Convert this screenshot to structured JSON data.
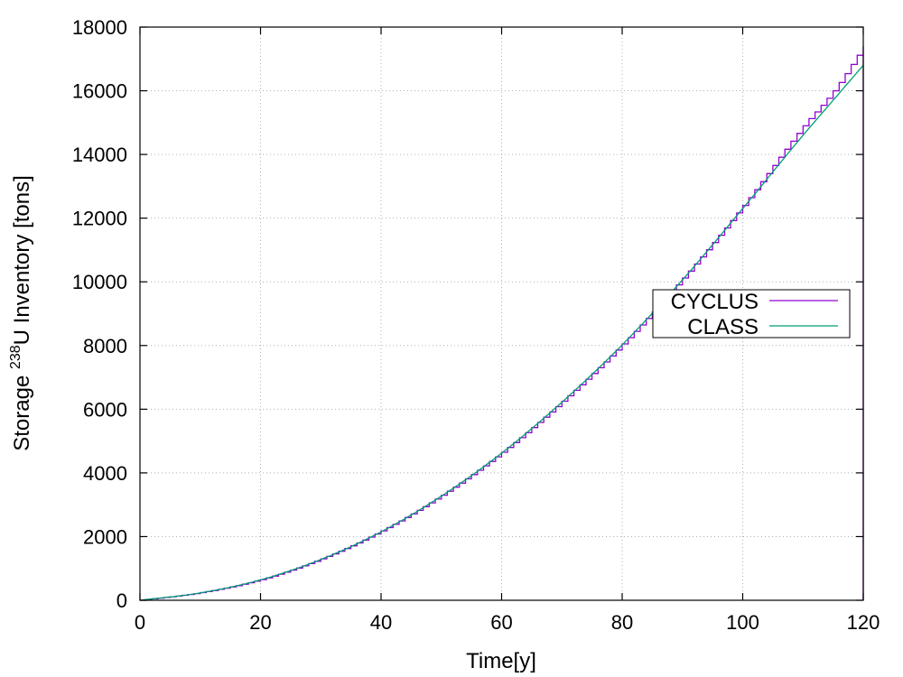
{
  "chart_data": {
    "type": "line",
    "xlabel": "Time[y]",
    "ylabel": {
      "prefix": "Storage ",
      "superscript": "238",
      "suffix": "U Inventory [tons]"
    },
    "xlim": [
      0,
      120
    ],
    "ylim": [
      0,
      18000
    ],
    "xticks": [
      0,
      20,
      40,
      60,
      80,
      100,
      120
    ],
    "yticks": [
      0,
      2000,
      4000,
      6000,
      8000,
      10000,
      12000,
      14000,
      16000,
      18000
    ],
    "grid": true,
    "legend_position": "right",
    "series": [
      {
        "name": "CYCLUS",
        "color": "#9400d3",
        "style": "step",
        "step": 1,
        "x": [
          0,
          10,
          20,
          30,
          40,
          50,
          60,
          70,
          80,
          90,
          100,
          110,
          115,
          120
        ],
        "y": [
          0,
          240,
          650,
          1300,
          2180,
          3300,
          4650,
          6250,
          8050,
          10120,
          12400,
          14900,
          16000,
          17400
        ],
        "drop_at_end": true
      },
      {
        "name": "CLASS",
        "color": "#009e73",
        "style": "line",
        "x": [
          0,
          10,
          20,
          30,
          40,
          50,
          60,
          70,
          80,
          90,
          100,
          110,
          115,
          120
        ],
        "y": [
          0,
          230,
          640,
          1280,
          2150,
          3270,
          4620,
          6220,
          8020,
          10060,
          12300,
          14600,
          15700,
          16800
        ]
      }
    ]
  }
}
